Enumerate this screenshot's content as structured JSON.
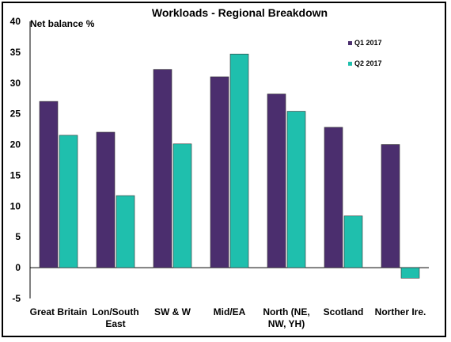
{
  "chart_data": {
    "type": "bar",
    "title": "Workloads - Regional Breakdown",
    "ylabel": "Net balance %",
    "xlabel": "",
    "ylim": [
      -5,
      40
    ],
    "yticks": [
      -5,
      0,
      5,
      10,
      15,
      20,
      25,
      30,
      35,
      40
    ],
    "grid": false,
    "legend_position": "top-right",
    "categories": [
      [
        "Great Britain"
      ],
      [
        "Lon/South",
        "East"
      ],
      [
        "SW & W"
      ],
      [
        "Mid/EA"
      ],
      [
        "North (NE,",
        "NW, YH)"
      ],
      [
        "Scotland"
      ],
      [
        "Norther Ire."
      ]
    ],
    "series": [
      {
        "name": "Q1 2017",
        "color": "#4B2E6E",
        "values": [
          27,
          22,
          32.2,
          31,
          28.2,
          22.8,
          20
        ]
      },
      {
        "name": "Q2 2017",
        "color": "#1FBFAD",
        "values": [
          21.5,
          11.7,
          20.1,
          34.7,
          25.4,
          8.4,
          -1.7
        ]
      }
    ]
  }
}
